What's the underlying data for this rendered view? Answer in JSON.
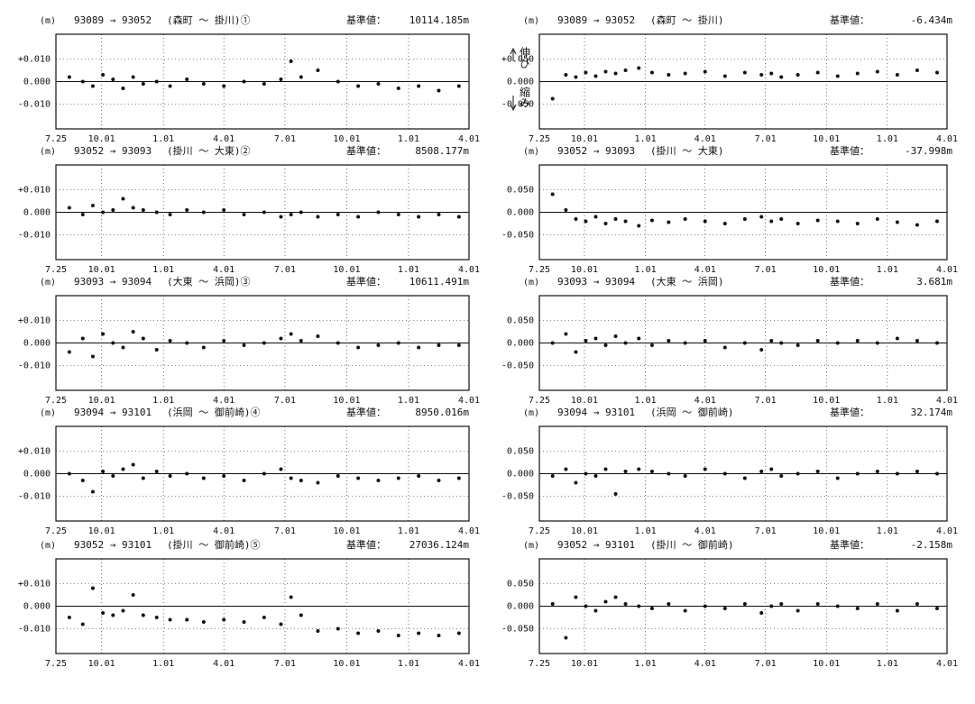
{
  "chart_data": [
    {
      "type": "scatter",
      "unit_label": "(m)",
      "route": "93089 → 93052",
      "section": "(森町 ～ 掛川)①",
      "reference_label": "基準値：",
      "reference_value": "10114.185m",
      "annotations": [
        "伸び",
        "縮み"
      ],
      "color": "#111111",
      "grid": true,
      "x": [
        20,
        40,
        55,
        70,
        85,
        100,
        115,
        130,
        150,
        170,
        195,
        220,
        250,
        280,
        310,
        335,
        350,
        365,
        390,
        420,
        450,
        480,
        510,
        540,
        570,
        600
      ],
      "values": [
        0.002,
        0.0,
        -0.002,
        0.003,
        0.001,
        -0.003,
        0.002,
        -0.001,
        0.0,
        -0.002,
        0.001,
        -0.001,
        -0.002,
        0.0,
        -0.001,
        0.001,
        0.009,
        0.002,
        0.005,
        0.0,
        -0.002,
        -0.001,
        -0.003,
        -0.002,
        -0.004,
        -0.002
      ],
      "xlim": [
        0,
        615
      ],
      "xticks": [
        {
          "value": 0,
          "label": "7.25"
        },
        {
          "value": 68,
          "label": "10.01"
        },
        {
          "value": 160,
          "label": "1.01"
        },
        {
          "value": 250,
          "label": "4.01"
        },
        {
          "value": 341,
          "label": "7.01"
        },
        {
          "value": 433,
          "label": "10.01"
        },
        {
          "value": 525,
          "label": "1.01"
        },
        {
          "value": 615,
          "label": "4.01"
        }
      ],
      "ylim": [
        -0.021,
        0.021
      ],
      "yticks": [
        {
          "value": 0.01,
          "label": "+0.010"
        },
        {
          "value": 0,
          "label": "0.000"
        },
        {
          "value": -0.01,
          "label": "-0.010"
        }
      ]
    },
    {
      "type": "scatter",
      "unit_label": "(m)",
      "route": "93089 → 93052",
      "section": "(森町 ～ 掛川)",
      "reference_label": "基準値：",
      "reference_value": "-6.434m",
      "color": "#111111",
      "grid": true,
      "x": [
        20,
        40,
        55,
        70,
        85,
        100,
        115,
        130,
        150,
        170,
        195,
        220,
        250,
        280,
        310,
        335,
        350,
        365,
        390,
        420,
        450,
        480,
        510,
        540,
        570,
        600
      ],
      "values": [
        -0.038,
        0.015,
        0.01,
        0.02,
        0.012,
        0.022,
        0.018,
        0.025,
        0.03,
        0.02,
        0.015,
        0.018,
        0.022,
        0.012,
        0.02,
        0.015,
        0.018,
        0.01,
        0.015,
        0.02,
        0.012,
        0.018,
        0.022,
        0.015,
        0.025,
        0.02
      ],
      "xlim": [
        0,
        615
      ],
      "xticks": [
        {
          "value": 0,
          "label": "7.25"
        },
        {
          "value": 68,
          "label": "10.01"
        },
        {
          "value": 160,
          "label": "1.01"
        },
        {
          "value": 250,
          "label": "4.01"
        },
        {
          "value": 341,
          "label": "7.01"
        },
        {
          "value": 433,
          "label": "10.01"
        },
        {
          "value": 525,
          "label": "1.01"
        },
        {
          "value": 615,
          "label": "4.01"
        }
      ],
      "ylim": [
        -0.105,
        0.105
      ],
      "yticks": [
        {
          "value": 0.05,
          "label": "+0.050"
        },
        {
          "value": 0,
          "label": "0.000"
        },
        {
          "value": -0.05,
          "label": "-0.050"
        }
      ]
    },
    {
      "type": "scatter",
      "unit_label": "(m)",
      "route": "93052 → 93093",
      "section": "(掛川 ～ 大東)②",
      "reference_label": "基準値：",
      "reference_value": "8508.177m",
      "color": "#111111",
      "grid": true,
      "x": [
        20,
        40,
        55,
        70,
        85,
        100,
        115,
        130,
        150,
        170,
        195,
        220,
        250,
        280,
        310,
        335,
        350,
        365,
        390,
        420,
        450,
        480,
        510,
        540,
        570,
        600
      ],
      "values": [
        0.002,
        -0.001,
        0.003,
        0.0,
        0.001,
        0.006,
        0.002,
        0.001,
        0.0,
        -0.001,
        0.001,
        0.0,
        0.001,
        -0.001,
        0.0,
        -0.002,
        -0.001,
        0.0,
        -0.002,
        -0.001,
        -0.002,
        0.0,
        -0.001,
        -0.002,
        -0.001,
        -0.002
      ],
      "xlim": [
        0,
        615
      ],
      "xticks": [
        {
          "value": 0,
          "label": "7.25"
        },
        {
          "value": 68,
          "label": "10.01"
        },
        {
          "value": 160,
          "label": "1.01"
        },
        {
          "value": 250,
          "label": "4.01"
        },
        {
          "value": 341,
          "label": "7.01"
        },
        {
          "value": 433,
          "label": "10.01"
        },
        {
          "value": 525,
          "label": "1.01"
        },
        {
          "value": 615,
          "label": "4.01"
        }
      ],
      "ylim": [
        -0.021,
        0.021
      ],
      "yticks": [
        {
          "value": 0.01,
          "label": "+0.010"
        },
        {
          "value": 0,
          "label": "0.000"
        },
        {
          "value": -0.01,
          "label": "-0.010"
        }
      ]
    },
    {
      "type": "scatter",
      "unit_label": "(m)",
      "route": "93052 → 93093",
      "section": "(掛川 ～ 大東)",
      "reference_label": "基準値：",
      "reference_value": "-37.998m",
      "color": "#111111",
      "grid": true,
      "x": [
        20,
        40,
        55,
        70,
        85,
        100,
        115,
        130,
        150,
        170,
        195,
        220,
        250,
        280,
        310,
        335,
        350,
        365,
        390,
        420,
        450,
        480,
        510,
        540,
        570,
        600
      ],
      "values": [
        0.04,
        0.005,
        -0.015,
        -0.02,
        -0.01,
        -0.025,
        -0.015,
        -0.02,
        -0.03,
        -0.018,
        -0.022,
        -0.015,
        -0.02,
        -0.025,
        -0.015,
        -0.01,
        -0.02,
        -0.015,
        -0.025,
        -0.018,
        -0.02,
        -0.025,
        -0.015,
        -0.022,
        -0.028,
        -0.02
      ],
      "xlim": [
        0,
        615
      ],
      "xticks": [
        {
          "value": 0,
          "label": "7.25"
        },
        {
          "value": 68,
          "label": "10.01"
        },
        {
          "value": 160,
          "label": "1.01"
        },
        {
          "value": 250,
          "label": "4.01"
        },
        {
          "value": 341,
          "label": "7.01"
        },
        {
          "value": 433,
          "label": "10.01"
        },
        {
          "value": 525,
          "label": "1.01"
        },
        {
          "value": 615,
          "label": "4.01"
        }
      ],
      "ylim": [
        -0.105,
        0.105
      ],
      "yticks": [
        {
          "value": 0.05,
          "label": "0.050"
        },
        {
          "value": 0,
          "label": "0.000"
        },
        {
          "value": -0.05,
          "label": "-0.050"
        }
      ]
    },
    {
      "type": "scatter",
      "unit_label": "(m)",
      "route": "93093 → 93094",
      "section": "(大東 ～ 浜岡)③",
      "reference_label": "基準値：",
      "reference_value": "10611.491m",
      "color": "#111111",
      "grid": true,
      "x": [
        20,
        40,
        55,
        70,
        85,
        100,
        115,
        130,
        150,
        170,
        195,
        220,
        250,
        280,
        310,
        335,
        350,
        365,
        390,
        420,
        450,
        480,
        510,
        540,
        570,
        600
      ],
      "values": [
        -0.004,
        0.002,
        -0.006,
        0.004,
        0.0,
        -0.002,
        0.005,
        0.002,
        -0.003,
        0.001,
        0.0,
        -0.002,
        0.001,
        -0.001,
        0.0,
        0.002,
        0.004,
        0.001,
        0.003,
        0.0,
        -0.002,
        -0.001,
        0.0,
        -0.002,
        -0.001,
        -0.001
      ],
      "xlim": [
        0,
        615
      ],
      "xticks": [
        {
          "value": 0,
          "label": "7.25"
        },
        {
          "value": 68,
          "label": "10.01"
        },
        {
          "value": 160,
          "label": "1.01"
        },
        {
          "value": 250,
          "label": "4.01"
        },
        {
          "value": 341,
          "label": "7.01"
        },
        {
          "value": 433,
          "label": "10.01"
        },
        {
          "value": 525,
          "label": "1.01"
        },
        {
          "value": 615,
          "label": "4.01"
        }
      ],
      "ylim": [
        -0.021,
        0.021
      ],
      "yticks": [
        {
          "value": 0.01,
          "label": "+0.010"
        },
        {
          "value": 0,
          "label": "0.000"
        },
        {
          "value": -0.01,
          "label": "-0.010"
        }
      ]
    },
    {
      "type": "scatter",
      "unit_label": "(m)",
      "route": "93093 → 93094",
      "section": "(大東 ～ 浜岡)",
      "reference_label": "基準値：",
      "reference_value": "3.681m",
      "color": "#111111",
      "grid": true,
      "x": [
        20,
        40,
        55,
        70,
        85,
        100,
        115,
        130,
        150,
        170,
        195,
        220,
        250,
        280,
        310,
        335,
        350,
        365,
        390,
        420,
        450,
        480,
        510,
        540,
        570,
        600
      ],
      "values": [
        0.0,
        0.02,
        -0.02,
        0.005,
        0.01,
        -0.005,
        0.015,
        0.0,
        0.01,
        -0.005,
        0.005,
        0.0,
        0.005,
        -0.01,
        0.0,
        -0.015,
        0.005,
        0.0,
        -0.005,
        0.005,
        0.0,
        0.005,
        0.0,
        0.01,
        0.005,
        0.0
      ],
      "xlim": [
        0,
        615
      ],
      "xticks": [
        {
          "value": 0,
          "label": "7.25"
        },
        {
          "value": 68,
          "label": "10.01"
        },
        {
          "value": 160,
          "label": "1.01"
        },
        {
          "value": 250,
          "label": "4.01"
        },
        {
          "value": 341,
          "label": "7.01"
        },
        {
          "value": 433,
          "label": "10.01"
        },
        {
          "value": 525,
          "label": "1.01"
        },
        {
          "value": 615,
          "label": "4.01"
        }
      ],
      "ylim": [
        -0.105,
        0.105
      ],
      "yticks": [
        {
          "value": 0.05,
          "label": "0.050"
        },
        {
          "value": 0,
          "label": "0.000"
        },
        {
          "value": -0.05,
          "label": "-0.050"
        }
      ]
    },
    {
      "type": "scatter",
      "unit_label": "(m)",
      "route": "93094 → 93101",
      "section": "(浜岡 ～ 御前崎)④",
      "reference_label": "基準値：",
      "reference_value": "8950.016m",
      "color": "#111111",
      "grid": true,
      "x": [
        20,
        40,
        55,
        70,
        85,
        100,
        115,
        130,
        150,
        170,
        195,
        220,
        250,
        280,
        310,
        335,
        350,
        365,
        390,
        420,
        450,
        480,
        510,
        540,
        570,
        600
      ],
      "values": [
        0.0,
        -0.003,
        -0.008,
        0.001,
        -0.001,
        0.002,
        0.004,
        -0.002,
        0.001,
        -0.001,
        0.0,
        -0.002,
        -0.001,
        -0.003,
        0.0,
        0.002,
        -0.002,
        -0.003,
        -0.004,
        -0.001,
        -0.002,
        -0.003,
        -0.002,
        -0.001,
        -0.003,
        -0.002
      ],
      "xlim": [
        0,
        615
      ],
      "xticks": [
        {
          "value": 0,
          "label": "7.25"
        },
        {
          "value": 68,
          "label": "10.01"
        },
        {
          "value": 160,
          "label": "1.01"
        },
        {
          "value": 250,
          "label": "4.01"
        },
        {
          "value": 341,
          "label": "7.01"
        },
        {
          "value": 433,
          "label": "10.01"
        },
        {
          "value": 525,
          "label": "1.01"
        },
        {
          "value": 615,
          "label": "4.01"
        }
      ],
      "ylim": [
        -0.021,
        0.021
      ],
      "yticks": [
        {
          "value": 0.01,
          "label": "+0.010"
        },
        {
          "value": 0,
          "label": "0.000"
        },
        {
          "value": -0.01,
          "label": "-0.010"
        }
      ]
    },
    {
      "type": "scatter",
      "unit_label": "(m)",
      "route": "93094 → 93101",
      "section": "(浜岡 ～ 御前崎)",
      "reference_label": "基準値：",
      "reference_value": "32.174m",
      "color": "#111111",
      "grid": true,
      "x": [
        20,
        40,
        55,
        70,
        85,
        100,
        115,
        130,
        150,
        170,
        195,
        220,
        250,
        280,
        310,
        335,
        350,
        365,
        390,
        420,
        450,
        480,
        510,
        540,
        570,
        600
      ],
      "values": [
        -0.005,
        0.01,
        -0.02,
        0.0,
        -0.005,
        0.01,
        -0.045,
        0.005,
        0.01,
        0.005,
        0.0,
        -0.005,
        0.01,
        0.0,
        -0.01,
        0.005,
        0.01,
        -0.005,
        0.0,
        0.005,
        -0.01,
        0.0,
        0.005,
        0.0,
        0.005,
        0.0
      ],
      "xlim": [
        0,
        615
      ],
      "xticks": [
        {
          "value": 0,
          "label": "7.25"
        },
        {
          "value": 68,
          "label": "10.01"
        },
        {
          "value": 160,
          "label": "1.01"
        },
        {
          "value": 250,
          "label": "4.01"
        },
        {
          "value": 341,
          "label": "7.01"
        },
        {
          "value": 433,
          "label": "10.01"
        },
        {
          "value": 525,
          "label": "1.01"
        },
        {
          "value": 615,
          "label": "4.01"
        }
      ],
      "ylim": [
        -0.105,
        0.105
      ],
      "yticks": [
        {
          "value": 0.05,
          "label": "0.050"
        },
        {
          "value": 0,
          "label": "0.000"
        },
        {
          "value": -0.05,
          "label": "-0.050"
        }
      ]
    },
    {
      "type": "scatter",
      "unit_label": "(m)",
      "route": "93052 → 93101",
      "section": "(掛川 ～ 御前崎)⑤",
      "reference_label": "基準値：",
      "reference_value": "27036.124m",
      "color": "#111111",
      "grid": true,
      "x": [
        20,
        40,
        55,
        70,
        85,
        100,
        115,
        130,
        150,
        170,
        195,
        220,
        250,
        280,
        310,
        335,
        350,
        365,
        390,
        420,
        450,
        480,
        510,
        540,
        570,
        600
      ],
      "values": [
        -0.005,
        -0.008,
        0.008,
        -0.003,
        -0.004,
        -0.002,
        0.005,
        -0.004,
        -0.005,
        -0.006,
        -0.006,
        -0.007,
        -0.006,
        -0.007,
        -0.005,
        -0.008,
        0.004,
        -0.004,
        -0.011,
        -0.01,
        -0.012,
        -0.011,
        -0.013,
        -0.012,
        -0.013,
        -0.012
      ],
      "xlim": [
        0,
        615
      ],
      "xticks": [
        {
          "value": 0,
          "label": "7.25"
        },
        {
          "value": 68,
          "label": "10.01"
        },
        {
          "value": 160,
          "label": "1.01"
        },
        {
          "value": 250,
          "label": "4.01"
        },
        {
          "value": 341,
          "label": "7.01"
        },
        {
          "value": 433,
          "label": "10.01"
        },
        {
          "value": 525,
          "label": "1.01"
        },
        {
          "value": 615,
          "label": "4.01"
        }
      ],
      "ylim": [
        -0.021,
        0.021
      ],
      "yticks": [
        {
          "value": 0.01,
          "label": "+0.010"
        },
        {
          "value": 0,
          "label": "0.000"
        },
        {
          "value": -0.01,
          "label": "-0.010"
        }
      ]
    },
    {
      "type": "scatter",
      "unit_label": "(m)",
      "route": "93052 → 93101",
      "section": "(掛川 ～ 御前崎)",
      "reference_label": "基準値：",
      "reference_value": "-2.158m",
      "color": "#111111",
      "grid": true,
      "x": [
        20,
        40,
        55,
        70,
        85,
        100,
        115,
        130,
        150,
        170,
        195,
        220,
        250,
        280,
        310,
        335,
        350,
        365,
        390,
        420,
        450,
        480,
        510,
        540,
        570,
        600
      ],
      "values": [
        0.005,
        -0.07,
        0.02,
        0.0,
        -0.01,
        0.01,
        0.02,
        0.005,
        0.0,
        -0.005,
        0.005,
        -0.01,
        0.0,
        -0.005,
        0.005,
        -0.015,
        0.0,
        0.005,
        -0.01,
        0.005,
        0.0,
        -0.005,
        0.005,
        -0.01,
        0.005,
        -0.005
      ],
      "xlim": [
        0,
        615
      ],
      "xticks": [
        {
          "value": 0,
          "label": "7.25"
        },
        {
          "value": 68,
          "label": "10.01"
        },
        {
          "value": 160,
          "label": "1.01"
        },
        {
          "value": 250,
          "label": "4.01"
        },
        {
          "value": 341,
          "label": "7.01"
        },
        {
          "value": 433,
          "label": "10.01"
        },
        {
          "value": 525,
          "label": "1.01"
        },
        {
          "value": 615,
          "label": "4.01"
        }
      ],
      "ylim": [
        -0.105,
        0.105
      ],
      "yticks": [
        {
          "value": 0.05,
          "label": "0.050"
        },
        {
          "value": 0,
          "label": "0.000"
        },
        {
          "value": -0.05,
          "label": "-0.050"
        }
      ]
    }
  ]
}
